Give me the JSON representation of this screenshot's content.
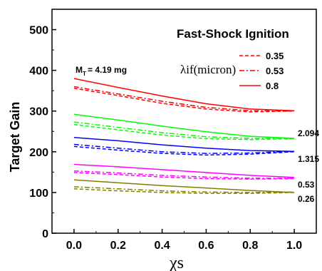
{
  "chart_data": {
    "type": "line",
    "title": "Fast-Shock Ignition",
    "xlabel": "χs",
    "ylabel": "Target  Gain",
    "xlim": [
      -0.1,
      1.1
    ],
    "ylim": [
      0,
      550
    ],
    "xticks": [
      "0.0",
      "0.2",
      "0.4",
      "0.6",
      "0.8",
      "1.0"
    ],
    "yticks": [
      "0",
      "100",
      "200",
      "300",
      "400",
      "500"
    ],
    "grid": false,
    "legend": {
      "placement": "top-right",
      "title": "λif(micron)",
      "entries": [
        {
          "label": "0.35",
          "dash": "dashed"
        },
        {
          "label": "0.53",
          "dash": "dashdot"
        },
        {
          "label": "0.8",
          "dash": "solid"
        }
      ]
    },
    "mass_prefix": "M",
    "mass_sub": "T",
    "mass_value": "= 4.19 mg",
    "groups": [
      {
        "label": "2.094",
        "color": "#ff0000",
        "series": [
          {
            "dash": "solid",
            "x": [
              0,
              0.2,
              0.4,
              0.6,
              0.8,
              1.0
            ],
            "y": [
              380,
              358,
              337,
              318,
              305,
              301
            ]
          },
          {
            "dash": "dashdot",
            "x": [
              0,
              0.2,
              0.4,
              0.6,
              0.8,
              1.0
            ],
            "y": [
              360,
              342,
              324,
              309,
              301,
              300
            ]
          },
          {
            "dash": "dashed",
            "x": [
              0,
              0.2,
              0.4,
              0.6,
              0.8,
              1.0
            ],
            "y": [
              356,
              338,
              319,
              305,
              298,
              300
            ]
          }
        ]
      },
      {
        "label": "1.315",
        "color": "#00ff00",
        "series": [
          {
            "dash": "solid",
            "x": [
              0,
              0.2,
              0.4,
              0.6,
              0.8,
              1.0
            ],
            "y": [
              292,
              278,
              263,
              249,
              238,
              233
            ]
          },
          {
            "dash": "dashdot",
            "x": [
              0,
              0.2,
              0.4,
              0.6,
              0.8,
              1.0
            ],
            "y": [
              273,
              260,
              247,
              237,
              233,
              233
            ]
          },
          {
            "dash": "dashed",
            "x": [
              0,
              0.2,
              0.4,
              0.6,
              0.8,
              1.0
            ],
            "y": [
              267,
              254,
              241,
              232,
              230,
              232
            ]
          }
        ]
      },
      {
        "label": "0.53",
        "color": "#0000ff",
        "series": [
          {
            "dash": "solid",
            "x": [
              0,
              0.2,
              0.4,
              0.6,
              0.8,
              1.0
            ],
            "y": [
              235,
              227,
              217,
              209,
              203,
              201
            ]
          },
          {
            "dash": "dashdot",
            "x": [
              0,
              0.2,
              0.4,
              0.6,
              0.8,
              1.0
            ],
            "y": [
              218,
              209,
              200,
              196,
              197,
              201
            ]
          },
          {
            "dash": "dashed",
            "x": [
              0,
              0.2,
              0.4,
              0.6,
              0.8,
              1.0
            ],
            "y": [
              213,
              204,
              196,
              192,
              194,
              200
            ]
          }
        ]
      },
      {
        "label": "0.26",
        "color": "#ff00ff",
        "series": [
          {
            "dash": "solid",
            "x": [
              0,
              0.2,
              0.4,
              0.6,
              0.8,
              1.0
            ],
            "y": [
              169,
              163,
              156,
              149,
              142,
              137
            ]
          },
          {
            "dash": "dashdot",
            "x": [
              0,
              0.2,
              0.4,
              0.6,
              0.8,
              1.0
            ],
            "y": [
              153,
              148,
              142,
              138,
              135,
              135
            ]
          },
          {
            "dash": "dashed",
            "x": [
              0,
              0.2,
              0.4,
              0.6,
              0.8,
              1.0
            ],
            "y": [
              149,
              144,
              138,
              134,
              133,
              134
            ]
          }
        ]
      },
      {
        "label": "",
        "color": "#808000",
        "series": [
          {
            "dash": "solid",
            "x": [
              0,
              0.2,
              0.4,
              0.6,
              0.8,
              1.0
            ],
            "y": [
              131,
              124,
              117,
              111,
              105,
              100
            ]
          },
          {
            "dash": "dashdot",
            "x": [
              0,
              0.2,
              0.4,
              0.6,
              0.8,
              1.0
            ],
            "y": [
              114,
              109,
              104,
              101,
              100,
              101
            ]
          },
          {
            "dash": "dashed",
            "x": [
              0,
              0.2,
              0.4,
              0.6,
              0.8,
              1.0
            ],
            "y": [
              109,
              104,
              100,
              98,
              98,
              100
            ]
          }
        ]
      }
    ]
  }
}
